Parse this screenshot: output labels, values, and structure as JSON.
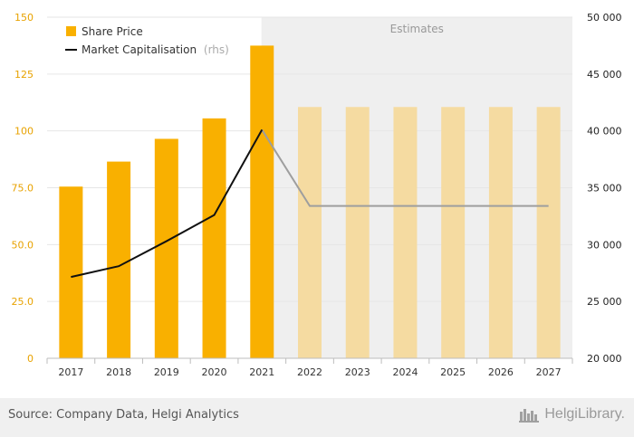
{
  "chart_data": {
    "type": "bar+line",
    "categories": [
      "2017",
      "2018",
      "2019",
      "2020",
      "2021",
      "2022",
      "2023",
      "2024",
      "2025",
      "2026",
      "2027"
    ],
    "estimate_start_index": 5,
    "estimates_label": "Estimates",
    "series": [
      {
        "name": "Share Price",
        "type": "bar",
        "axis": "left",
        "values": [
          75.5,
          86.5,
          96.5,
          105.5,
          137.5,
          110.5,
          110.5,
          110.5,
          110.5,
          110.5,
          110.5
        ]
      },
      {
        "name": "Market Capitalisation",
        "name_suffix": "(rhs)",
        "type": "line",
        "axis": "right",
        "values": [
          27150,
          28100,
          30300,
          32600,
          40100,
          33400,
          33400,
          33400,
          33400,
          33400,
          33400
        ]
      }
    ],
    "y_left": {
      "min": 0,
      "max": 150,
      "ticks": [
        "0",
        "25.0",
        "50.0",
        "75.0",
        "100",
        "125",
        "150"
      ]
    },
    "y_right": {
      "min": 20000,
      "max": 50000,
      "ticks": [
        "20 000",
        "25 000",
        "30 000",
        "35 000",
        "40 000",
        "45 000",
        "50 000"
      ]
    },
    "colors": {
      "bar_actual": "#f9b000",
      "bar_estimate": "#f5dba1",
      "line_actual": "#111111",
      "line_estimate": "#9e9e9e",
      "estimates_bg": "#efefef",
      "axis_text": "#e8a200"
    },
    "legend_placement": "top-left",
    "grid": true
  },
  "footer": {
    "source": "Source: Company Data, Helgi Analytics",
    "brand": "HelgiLibrary."
  }
}
